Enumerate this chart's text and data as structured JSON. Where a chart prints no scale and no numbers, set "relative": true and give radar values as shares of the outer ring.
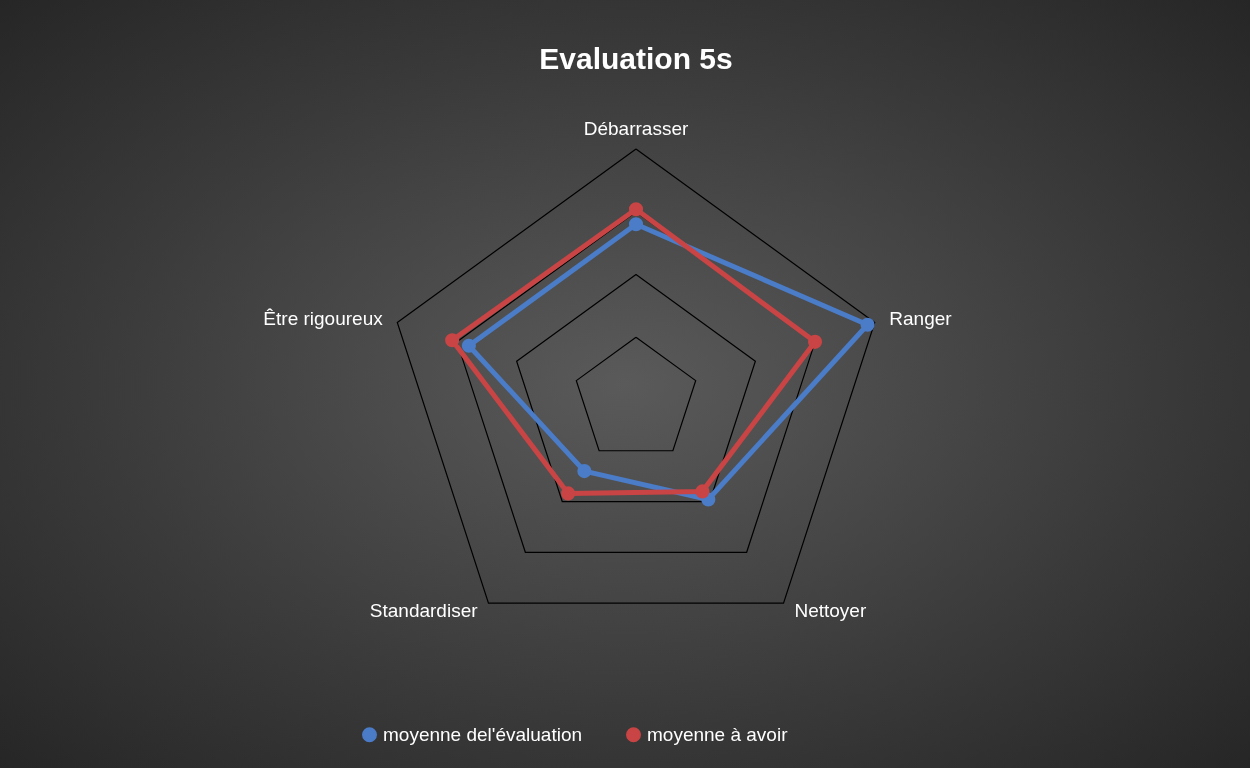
{
  "chart_data": {
    "type": "radar",
    "title": "Evaluation 5s",
    "relative": true,
    "grid": true,
    "legend": "bottom",
    "marker": "circle",
    "categories": [
      "Débarrasser",
      "Ranger",
      "Nettoyer",
      "Standardiser",
      "Être rigoureux"
    ],
    "series": [
      {
        "name": "moyenne del'évaluation",
        "color": "#4a7cc8",
        "values": [
          0.7,
          0.97,
          0.49,
          0.35,
          0.7
        ]
      },
      {
        "name": "moyenne à avoir",
        "color": "#c94444",
        "values": [
          0.76,
          0.75,
          0.45,
          0.46,
          0.77
        ]
      }
    ]
  }
}
